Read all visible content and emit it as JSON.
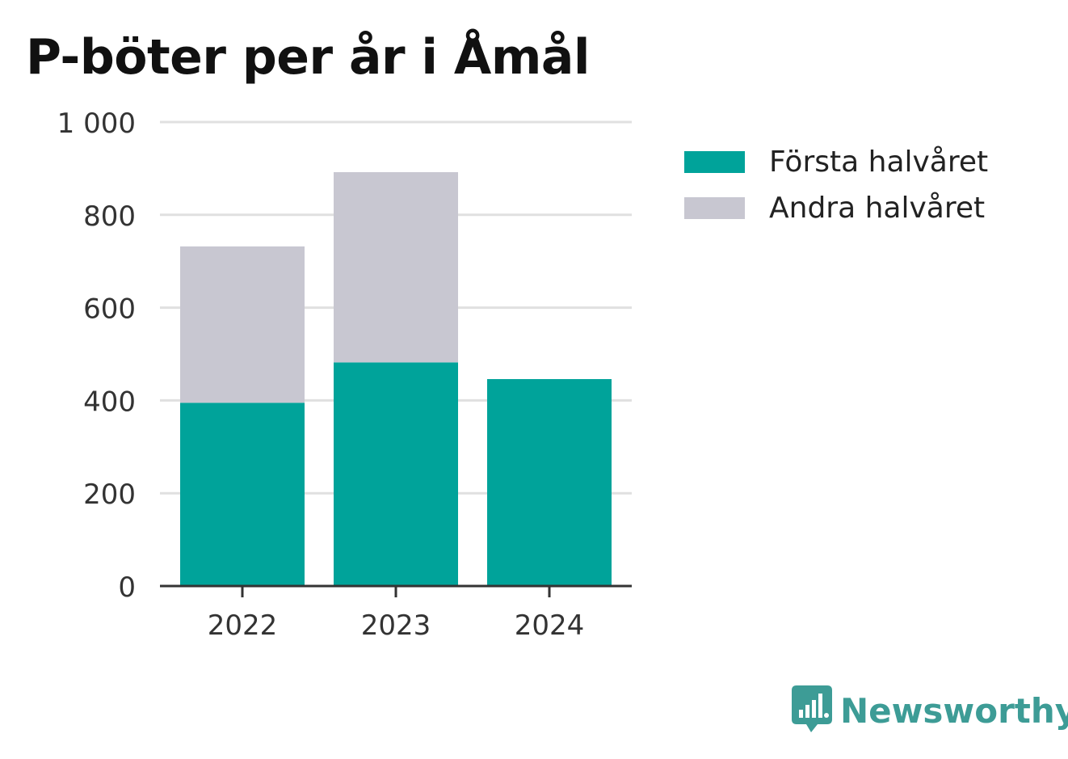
{
  "colors": {
    "series1": "#00a39a",
    "series2": "#c8c7d1",
    "grid": "#e0e0e0",
    "axis": "#333333",
    "brand": "#3d9c96"
  },
  "chart_data": {
    "type": "bar",
    "stacked": true,
    "title": "P-böter per år i Åmål",
    "categories": [
      "2022",
      "2023",
      "2024"
    ],
    "series": [
      {
        "name": "Första halvåret",
        "values": [
          395,
          482,
          446
        ]
      },
      {
        "name": "Andra halvåret",
        "values": [
          337,
          410,
          0
        ]
      }
    ],
    "ylim": [
      0,
      1000
    ],
    "yticks": [
      0,
      200,
      400,
      600,
      800,
      1000
    ],
    "ytick_labels": [
      "0",
      "200",
      "400",
      "600",
      "800",
      "1 000"
    ],
    "grid": true,
    "legend_position": "right"
  },
  "legend": [
    {
      "label": "Första halvåret",
      "color": "#00a39a"
    },
    {
      "label": "Andra halvåret",
      "color": "#c8c7d1"
    }
  ],
  "brand": {
    "name": "Newsworthy",
    "icon": "newsworthy-logo-icon"
  }
}
